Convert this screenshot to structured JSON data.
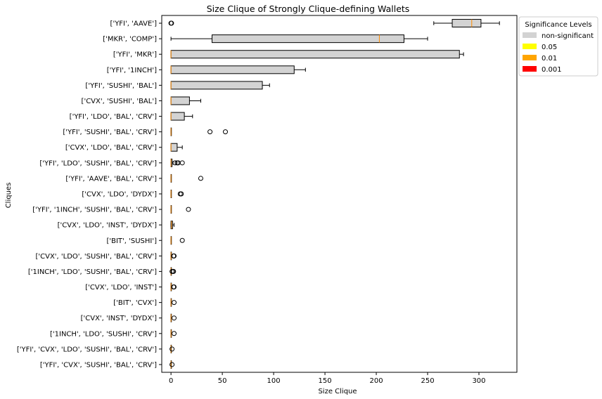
{
  "chart_data": {
    "type": "boxplot",
    "title": "Size Clique of Strongly Clique-defining Wallets",
    "xlabel": "Size Clique",
    "ylabel": "Cliques",
    "xlim": [
      -9,
      337
    ],
    "xticks": [
      0,
      50,
      100,
      150,
      200,
      250,
      300
    ],
    "grid": false,
    "legend": {
      "title": "Significance Levels",
      "placement": "outside-top-right",
      "entries": [
        {
          "label": "non-significant",
          "color": "#d3d3d3"
        },
        {
          "label": "0.05",
          "color": "#ffff00"
        },
        {
          "label": "0.01",
          "color": "#ffa500"
        },
        {
          "label": "0.001",
          "color": "#ff0000"
        }
      ]
    },
    "median_color": "#ff8c00",
    "categories": [
      {
        "label": "['YFI', 'CVX', 'SUSHI', 'BAL', 'CRV']",
        "q1": 0,
        "median": 0,
        "q3": 0,
        "whislo": 0,
        "whishi": 0,
        "fliers": [
          1
        ],
        "significance": "non-significant"
      },
      {
        "label": "['YFI', 'CVX', 'LDO', 'SUSHI', 'BAL', 'CRV']",
        "q1": 0,
        "median": 0,
        "q3": 0,
        "whislo": 0,
        "whishi": 0,
        "fliers": [
          1
        ],
        "significance": "non-significant"
      },
      {
        "label": "['1INCH', 'LDO', 'SUSHI', 'CRV']",
        "q1": 0,
        "median": 0,
        "q3": 0,
        "whislo": 0,
        "whishi": 0,
        "fliers": [
          3
        ],
        "significance": "non-significant"
      },
      {
        "label": "['CVX', 'INST', 'DYDX']",
        "q1": 0,
        "median": 0,
        "q3": 0,
        "whislo": 0,
        "whishi": 0,
        "fliers": [
          3
        ],
        "significance": "non-significant"
      },
      {
        "label": "['BIT', 'CVX']",
        "q1": 0,
        "median": 0,
        "q3": 0,
        "whislo": 0,
        "whishi": 0,
        "fliers": [
          3
        ],
        "significance": "non-significant"
      },
      {
        "label": "['CVX', 'LDO', 'INST']",
        "q1": 0,
        "median": 0,
        "q3": 0,
        "whislo": 0,
        "whishi": 0,
        "fliers": [
          2.5,
          3
        ],
        "significance": "non-significant"
      },
      {
        "label": "['1INCH', 'LDO', 'SUSHI', 'BAL', 'CRV']",
        "q1": 0,
        "median": 0,
        "q3": 0,
        "whislo": 0,
        "whishi": 0,
        "fliers": [
          1,
          2,
          2.5
        ],
        "significance": "non-significant"
      },
      {
        "label": "['CVX', 'LDO', 'SUSHI', 'BAL', 'CRV']",
        "q1": 0,
        "median": 0,
        "q3": 0,
        "whislo": 0,
        "whishi": 0,
        "fliers": [
          2.5,
          3
        ],
        "significance": "non-significant"
      },
      {
        "label": "['BIT', 'SUSHI']",
        "q1": 0,
        "median": 0,
        "q3": 0,
        "whislo": 0,
        "whishi": 0,
        "fliers": [
          11
        ],
        "significance": "non-significant"
      },
      {
        "label": "['CVX', 'LDO', 'INST', 'DYDX']",
        "q1": 0,
        "median": 0.5,
        "q3": 1.5,
        "whislo": 0,
        "whishi": 3,
        "fliers": [],
        "significance": "non-significant"
      },
      {
        "label": "['YFI', '1INCH', 'SUSHI', 'BAL', 'CRV']",
        "q1": 0,
        "median": 0,
        "q3": 0,
        "whislo": 0,
        "whishi": 0,
        "fliers": [
          17
        ],
        "significance": "non-significant"
      },
      {
        "label": "['CVX', 'LDO', 'DYDX']",
        "q1": 0,
        "median": 0,
        "q3": 0,
        "whislo": 0,
        "whishi": 0,
        "fliers": [
          9,
          10
        ],
        "significance": "non-significant"
      },
      {
        "label": "['YFI', 'AAVE', 'BAL', 'CRV']",
        "q1": 0,
        "median": 0,
        "q3": 0,
        "whislo": 0,
        "whishi": 0,
        "fliers": [
          29
        ],
        "significance": "non-significant"
      },
      {
        "label": "['YFI', 'LDO', 'SUSHI', 'BAL', 'CRV']",
        "q1": 0,
        "median": 0,
        "q3": 1,
        "whislo": 0,
        "whishi": 2,
        "fliers": [
          4,
          6,
          7,
          11
        ],
        "significance": "non-significant"
      },
      {
        "label": "['CVX', 'LDO', 'BAL', 'CRV']",
        "q1": 0,
        "median": 0,
        "q3": 6,
        "whislo": 0,
        "whishi": 11,
        "fliers": [],
        "significance": "non-significant"
      },
      {
        "label": "['YFI', 'SUSHI', 'BAL', 'CRV']",
        "q1": 0,
        "median": 0,
        "q3": 0,
        "whislo": 0,
        "whishi": 0,
        "fliers": [
          38,
          53
        ],
        "significance": "non-significant"
      },
      {
        "label": "['YFI', 'LDO', 'BAL', 'CRV']",
        "q1": 0,
        "median": 0,
        "q3": 13,
        "whislo": 0,
        "whishi": 21,
        "fliers": [],
        "significance": "non-significant"
      },
      {
        "label": "['CVX', 'SUSHI', 'BAL']",
        "q1": 0,
        "median": 0,
        "q3": 18,
        "whislo": 0,
        "whishi": 29,
        "fliers": [],
        "significance": "non-significant"
      },
      {
        "label": "['YFI', 'SUSHI', 'BAL']",
        "q1": 0,
        "median": 0,
        "q3": 89,
        "whislo": 0,
        "whishi": 96,
        "fliers": [],
        "significance": "non-significant"
      },
      {
        "label": "['YFI', '1INCH']",
        "q1": 0,
        "median": 0,
        "q3": 120,
        "whislo": 0,
        "whishi": 131,
        "fliers": [],
        "significance": "non-significant"
      },
      {
        "label": "['YFI', 'MKR']",
        "q1": 0,
        "median": 0,
        "q3": 281,
        "whislo": 0,
        "whishi": 285,
        "fliers": [],
        "significance": "non-significant"
      },
      {
        "label": "['MKR', 'COMP']",
        "q1": 40,
        "median": 203,
        "q3": 227,
        "whislo": 0,
        "whishi": 250,
        "fliers": [],
        "significance": "non-significant"
      },
      {
        "label": "['YFI', 'AAVE']",
        "q1": 274,
        "median": 293,
        "q3": 302,
        "whislo": 256,
        "whishi": 320,
        "fliers": [
          0,
          0.5
        ],
        "significance": "non-significant"
      }
    ]
  }
}
